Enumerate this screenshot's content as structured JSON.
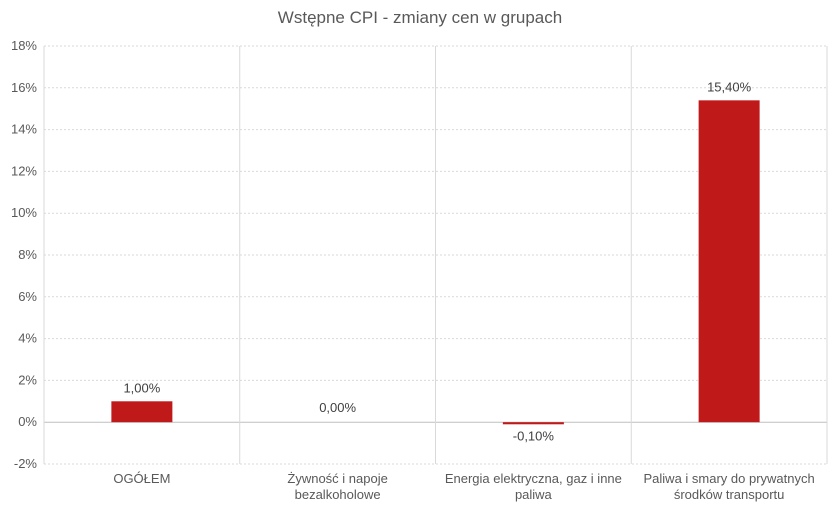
{
  "chart_data": {
    "type": "bar",
    "title": "Wstępne CPI - zmiany cen w grupach",
    "categories": [
      [
        "OGÓŁEM"
      ],
      [
        "Żywność i napoje",
        "bezalkoholowe"
      ],
      [
        "Energia elektryczna, gaz i inne",
        "paliwa"
      ],
      [
        "Paliwa i smary do prywatnych",
        "środków transportu"
      ]
    ],
    "values": [
      1.0,
      0.0,
      -0.1,
      15.4
    ],
    "data_labels": [
      "1,00%",
      "0,00%",
      "-0,10%",
      "15,40%"
    ],
    "ylim": [
      -2,
      18
    ],
    "yticks": [
      "-2%",
      "0%",
      "2%",
      "4%",
      "6%",
      "8%",
      "10%",
      "12%",
      "14%",
      "16%",
      "18%"
    ],
    "xlabel": "",
    "ylabel": "",
    "grid": true,
    "legend": "none",
    "bar_color": "#C0191A"
  }
}
